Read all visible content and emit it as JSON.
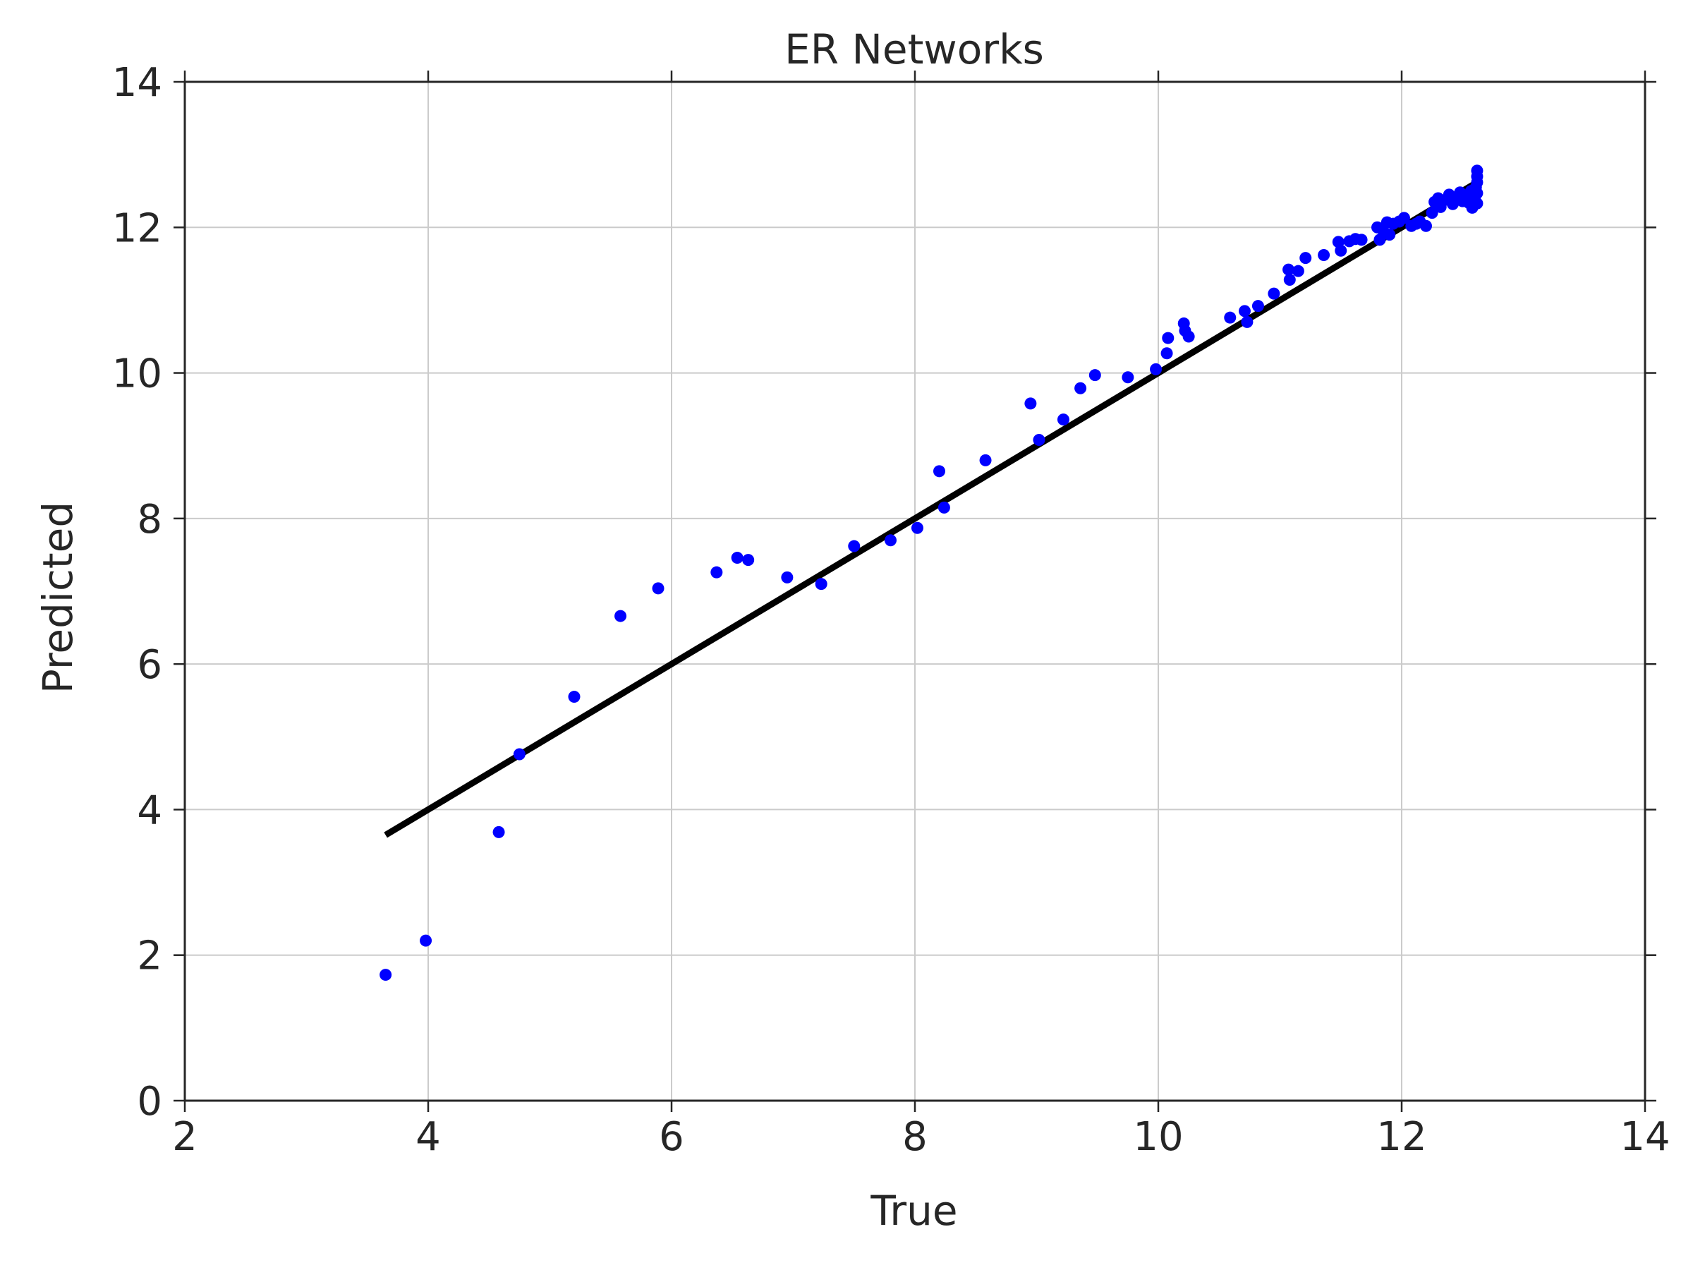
{
  "chart_data": {
    "type": "scatter",
    "title": "ER Networks",
    "xlabel": "True",
    "ylabel": "Predicted",
    "xlim": [
      2,
      14
    ],
    "ylim": [
      0,
      14
    ],
    "xticks": [
      "2",
      "4",
      "6",
      "8",
      "10",
      "12",
      "14"
    ],
    "yticks": [
      "0",
      "2",
      "4",
      "6",
      "8",
      "10",
      "12",
      "14"
    ],
    "grid": true,
    "legend": "none",
    "point_color": "#0000ff",
    "line_color": "#000000",
    "fit_line": {
      "x": [
        3.65,
        12.62
      ],
      "y": [
        3.65,
        12.62
      ]
    },
    "series": [
      {
        "x": [
          3.65,
          3.98,
          4.58,
          4.75,
          5.2,
          5.58,
          5.89,
          6.37,
          6.54,
          6.63,
          6.95,
          7.23,
          7.5,
          7.8,
          8.02,
          8.2,
          8.24,
          8.58,
          8.95,
          9.02,
          9.22,
          9.36,
          9.48,
          9.75,
          9.98,
          10.07,
          10.08,
          10.21,
          10.22,
          10.25,
          10.59,
          10.71,
          10.73,
          10.82,
          10.95,
          11.07,
          11.08,
          11.15,
          11.21,
          11.36,
          11.48,
          11.5,
          11.57,
          11.62,
          11.67,
          11.8,
          11.82,
          11.85,
          11.88,
          11.9,
          11.93,
          11.98,
          12.02,
          12.08,
          12.12,
          12.15,
          12.2,
          12.25,
          12.27,
          12.3,
          12.32,
          12.36,
          12.39,
          12.42,
          12.46,
          12.48,
          12.5,
          12.52,
          12.55,
          12.57,
          12.58,
          12.6,
          12.61,
          12.62,
          12.62,
          12.62,
          12.62,
          12.62
        ],
        "y": [
          1.73,
          2.2,
          3.69,
          4.76,
          5.55,
          6.66,
          7.04,
          7.26,
          7.46,
          7.43,
          7.19,
          7.1,
          7.62,
          7.7,
          7.87,
          8.65,
          8.15,
          8.8,
          9.58,
          9.08,
          9.36,
          9.79,
          9.97,
          9.94,
          10.05,
          10.27,
          10.48,
          10.68,
          10.58,
          10.5,
          10.76,
          10.85,
          10.7,
          10.92,
          11.09,
          11.42,
          11.28,
          11.4,
          11.58,
          11.62,
          11.8,
          11.68,
          11.81,
          11.84,
          11.83,
          12.0,
          11.83,
          11.95,
          12.07,
          11.9,
          12.05,
          12.08,
          12.13,
          12.02,
          12.05,
          12.08,
          12.02,
          12.2,
          12.35,
          12.4,
          12.28,
          12.38,
          12.45,
          12.32,
          12.42,
          12.48,
          12.36,
          12.44,
          12.34,
          12.5,
          12.27,
          12.4,
          12.55,
          12.78,
          12.7,
          12.62,
          12.47,
          12.33
        ]
      }
    ]
  }
}
